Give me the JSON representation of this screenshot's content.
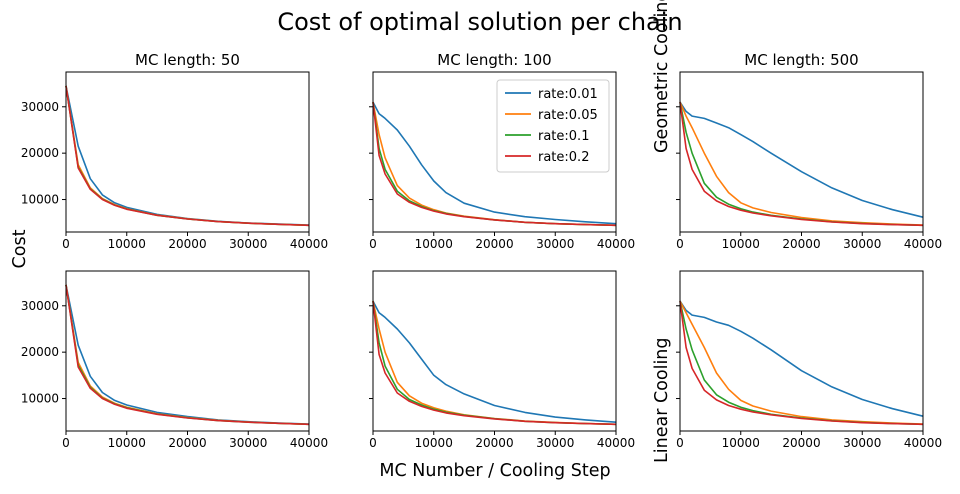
{
  "title": "Cost of optimal solution per chain",
  "ylabel": "Cost",
  "xlabel": "MC Number / Cooling Step",
  "row_labels": [
    "Geometric Cooling",
    "Linear Cooling"
  ],
  "colors": {
    "rate:0.01": "#1f77b4",
    "rate:0.05": "#ff7f0e",
    "rate:0.1": "#2ca02c",
    "rate:0.2": "#d62728"
  },
  "legend": {
    "location": "top-right of top-middle panel",
    "entries": [
      "rate:0.01",
      "rate:0.05",
      "rate:0.1",
      "rate:0.2"
    ]
  },
  "chart_data": [
    {
      "type": "line",
      "title": "MC length: 50",
      "row": "Geometric Cooling",
      "x": [
        0,
        2000,
        4000,
        6000,
        8000,
        10000,
        15000,
        20000,
        25000,
        30000,
        35000,
        40000
      ],
      "xlim": [
        0,
        40000
      ],
      "ylim": [
        3000,
        37500
      ],
      "xticks": [
        0,
        10000,
        20000,
        30000,
        40000
      ],
      "yticks": [
        10000,
        20000,
        30000
      ],
      "series": [
        {
          "name": "rate:0.01",
          "values": [
            34500,
            21500,
            14500,
            11000,
            9300,
            8300,
            6800,
            5900,
            5300,
            4950,
            4700,
            4500
          ]
        },
        {
          "name": "rate:0.05",
          "values": [
            34500,
            17500,
            12500,
            10200,
            8900,
            8000,
            6650,
            5850,
            5250,
            4900,
            4650,
            4450
          ]
        },
        {
          "name": "rate:0.1",
          "values": [
            34500,
            17000,
            12300,
            10100,
            8800,
            7950,
            6600,
            5800,
            5250,
            4900,
            4650,
            4450
          ]
        },
        {
          "name": "rate:0.2",
          "values": [
            34500,
            16800,
            12200,
            10000,
            8750,
            7900,
            6600,
            5800,
            5250,
            4900,
            4650,
            4450
          ]
        }
      ]
    },
    {
      "type": "line",
      "title": "MC length: 100",
      "row": "Geometric Cooling",
      "x": [
        0,
        1000,
        2000,
        4000,
        6000,
        8000,
        10000,
        12000,
        15000,
        20000,
        25000,
        30000,
        35000,
        40000
      ],
      "xlim": [
        0,
        40000
      ],
      "ylim": [
        3000,
        37500
      ],
      "xticks": [
        0,
        10000,
        20000,
        30000,
        40000
      ],
      "yticks": [
        10000,
        20000,
        30000
      ],
      "series": [
        {
          "name": "rate:0.01",
          "values": [
            31000,
            28500,
            27500,
            25000,
            21500,
            17500,
            14000,
            11500,
            9200,
            7300,
            6300,
            5700,
            5200,
            4800
          ]
        },
        {
          "name": "rate:0.05",
          "values": [
            31000,
            24000,
            19000,
            13000,
            10300,
            8800,
            7800,
            7100,
            6400,
            5650,
            5100,
            4800,
            4600,
            4450
          ]
        },
        {
          "name": "rate:0.1",
          "values": [
            31000,
            21000,
            16500,
            11800,
            9700,
            8500,
            7600,
            7000,
            6350,
            5600,
            5100,
            4800,
            4600,
            4450
          ]
        },
        {
          "name": "rate:0.2",
          "values": [
            31000,
            19500,
            15500,
            11200,
            9400,
            8300,
            7500,
            6900,
            6300,
            5600,
            5100,
            4800,
            4600,
            4450
          ]
        }
      ]
    },
    {
      "type": "line",
      "title": "MC length: 500",
      "row": "Geometric Cooling",
      "x": [
        0,
        1000,
        2000,
        4000,
        6000,
        8000,
        10000,
        12000,
        15000,
        20000,
        25000,
        30000,
        35000,
        40000
      ],
      "xlim": [
        0,
        40000
      ],
      "ylim": [
        3000,
        37500
      ],
      "xticks": [
        0,
        10000,
        20000,
        30000,
        40000
      ],
      "yticks": [
        10000,
        20000,
        30000
      ],
      "series": [
        {
          "name": "rate:0.01",
          "values": [
            31000,
            29000,
            28000,
            27500,
            26500,
            25500,
            24000,
            22500,
            20000,
            16000,
            12500,
            9800,
            7800,
            6200
          ]
        },
        {
          "name": "rate:0.05",
          "values": [
            31000,
            28000,
            25500,
            20000,
            15000,
            11500,
            9300,
            8200,
            7200,
            6100,
            5400,
            5000,
            4700,
            4500
          ]
        },
        {
          "name": "rate:0.1",
          "values": [
            31000,
            24500,
            20000,
            13500,
            10500,
            9000,
            8000,
            7300,
            6600,
            5800,
            5200,
            4850,
            4600,
            4450
          ]
        },
        {
          "name": "rate:0.2",
          "values": [
            31000,
            21000,
            16500,
            11800,
            9700,
            8500,
            7700,
            7100,
            6500,
            5700,
            5150,
            4800,
            4600,
            4450
          ]
        }
      ]
    },
    {
      "type": "line",
      "title": "",
      "row": "Linear Cooling",
      "x": [
        0,
        2000,
        4000,
        6000,
        8000,
        10000,
        15000,
        20000,
        25000,
        30000,
        35000,
        40000
      ],
      "xlim": [
        0,
        40000
      ],
      "ylim": [
        3000,
        37500
      ],
      "xticks": [
        0,
        10000,
        20000,
        30000,
        40000
      ],
      "yticks": [
        10000,
        20000,
        30000
      ],
      "series": [
        {
          "name": "rate:0.01",
          "values": [
            34500,
            21500,
            14800,
            11300,
            9600,
            8600,
            7000,
            6100,
            5400,
            5000,
            4700,
            4500
          ]
        },
        {
          "name": "rate:0.05",
          "values": [
            34500,
            17800,
            12700,
            10300,
            9000,
            8100,
            6700,
            5900,
            5300,
            4950,
            4650,
            4450
          ]
        },
        {
          "name": "rate:0.1",
          "values": [
            34500,
            17200,
            12400,
            10100,
            8850,
            8000,
            6650,
            5850,
            5250,
            4900,
            4650,
            4450
          ]
        },
        {
          "name": "rate:0.2",
          "values": [
            34500,
            16800,
            12200,
            10000,
            8750,
            7900,
            6600,
            5800,
            5250,
            4900,
            4650,
            4450
          ]
        }
      ]
    },
    {
      "type": "line",
      "title": "",
      "row": "Linear Cooling",
      "x": [
        0,
        1000,
        2000,
        4000,
        6000,
        8000,
        10000,
        12000,
        15000,
        20000,
        25000,
        30000,
        35000,
        40000
      ],
      "xlim": [
        0,
        40000
      ],
      "ylim": [
        3000,
        37500
      ],
      "xticks": [
        0,
        10000,
        20000,
        30000,
        40000
      ],
      "yticks": [
        10000,
        20000,
        30000
      ],
      "series": [
        {
          "name": "rate:0.01",
          "values": [
            31000,
            28500,
            27500,
            25000,
            22000,
            18500,
            15000,
            13000,
            11000,
            8500,
            7000,
            6000,
            5400,
            4900
          ]
        },
        {
          "name": "rate:0.05",
          "values": [
            31000,
            25000,
            20000,
            13500,
            10600,
            9000,
            8000,
            7300,
            6500,
            5700,
            5150,
            4850,
            4600,
            4450
          ]
        },
        {
          "name": "rate:0.1",
          "values": [
            31000,
            22000,
            17000,
            12000,
            9800,
            8600,
            7700,
            7050,
            6400,
            5650,
            5100,
            4800,
            4600,
            4450
          ]
        },
        {
          "name": "rate:0.2",
          "values": [
            31000,
            19500,
            15500,
            11200,
            9400,
            8300,
            7500,
            6900,
            6300,
            5600,
            5100,
            4800,
            4600,
            4450
          ]
        }
      ]
    },
    {
      "type": "line",
      "title": "",
      "row": "Linear Cooling",
      "x": [
        0,
        1000,
        2000,
        4000,
        6000,
        8000,
        10000,
        12000,
        15000,
        20000,
        25000,
        30000,
        35000,
        40000
      ],
      "xlim": [
        0,
        40000
      ],
      "ylim": [
        3000,
        37500
      ],
      "xticks": [
        0,
        10000,
        20000,
        30000,
        40000
      ],
      "yticks": [
        10000,
        20000,
        30000
      ],
      "series": [
        {
          "name": "rate:0.01",
          "values": [
            31000,
            29000,
            28000,
            27500,
            26500,
            25800,
            24500,
            23000,
            20500,
            16000,
            12500,
            9800,
            7800,
            6200
          ]
        },
        {
          "name": "rate:0.05",
          "values": [
            31000,
            28500,
            26000,
            21000,
            15500,
            12000,
            9600,
            8400,
            7300,
            6100,
            5400,
            5000,
            4700,
            4500
          ]
        },
        {
          "name": "rate:0.1",
          "values": [
            31000,
            25000,
            20500,
            14000,
            10800,
            9200,
            8100,
            7400,
            6600,
            5800,
            5200,
            4850,
            4600,
            4450
          ]
        },
        {
          "name": "rate:0.2",
          "values": [
            31000,
            21000,
            16500,
            11800,
            9700,
            8500,
            7700,
            7100,
            6500,
            5700,
            5150,
            4800,
            4600,
            4450
          ]
        }
      ]
    }
  ]
}
